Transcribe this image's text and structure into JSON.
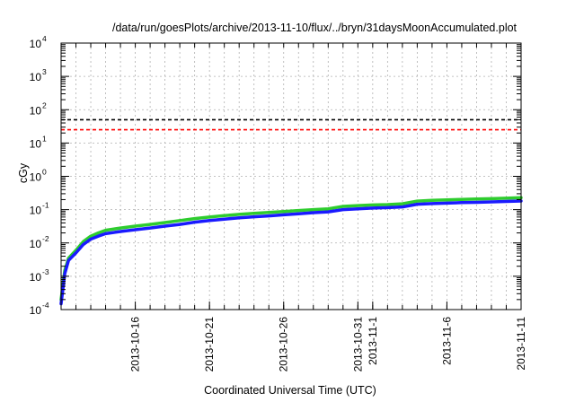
{
  "chart_data": {
    "type": "line",
    "title": "/data/run/goesPlots/archive/2013-11-10/flux/../bryn/31daysMoonAccumulated.plot",
    "xlabel": "Coordinated Universal Time (UTC)",
    "ylabel": "cGy",
    "yscale": "log",
    "ylim": [
      0.0001,
      10000
    ],
    "xlim": [
      "2013-10-11",
      "2013-11-11"
    ],
    "grid": true,
    "x_ticks": [
      "2013-10-16",
      "2013-10-21",
      "2013-10-26",
      "2013-10-31",
      "2013-11-1",
      "2013-11-6",
      "2013-11-11"
    ],
    "y_ticks": [
      {
        "base": "10",
        "exp": "-4",
        "value": 0.0001
      },
      {
        "base": "10",
        "exp": "-3",
        "value": 0.001
      },
      {
        "base": "10",
        "exp": "-2",
        "value": 0.01
      },
      {
        "base": "10",
        "exp": "-1",
        "value": 0.1
      },
      {
        "base": "10",
        "exp": "0",
        "value": 1
      },
      {
        "base": "10",
        "exp": "1",
        "value": 10
      },
      {
        "base": "10",
        "exp": "2",
        "value": 100
      },
      {
        "base": "10",
        "exp": "3",
        "value": 1000
      },
      {
        "base": "10",
        "exp": "4",
        "value": 10000
      }
    ],
    "reference_lines": [
      {
        "value": 50,
        "color": "#000000",
        "style": "dashed"
      },
      {
        "value": 25,
        "color": "#ff0000",
        "style": "dashed"
      }
    ],
    "series": [
      {
        "color": "#2ecc2e",
        "x": [
          "2013-10-11",
          "2013-10-11T06:00",
          "2013-10-11T12:00",
          "2013-10-12",
          "2013-10-12T12:00",
          "2013-10-13",
          "2013-10-13T12:00",
          "2013-10-14",
          "2013-10-15",
          "2013-10-16",
          "2013-10-17",
          "2013-10-18",
          "2013-10-19",
          "2013-10-20",
          "2013-10-21",
          "2013-10-22",
          "2013-10-23",
          "2013-10-24",
          "2013-10-25",
          "2013-10-26",
          "2013-10-27",
          "2013-10-28",
          "2013-10-29",
          "2013-10-30",
          "2013-10-31",
          "2013-11-01",
          "2013-11-02",
          "2013-11-03",
          "2013-11-04",
          "2013-11-05",
          "2013-11-06",
          "2013-11-07",
          "2013-11-08",
          "2013-11-09",
          "2013-11-10",
          "2013-11-11"
        ],
        "y": [
          0.0002,
          0.0015,
          0.0035,
          0.006,
          0.011,
          0.016,
          0.02,
          0.024,
          0.028,
          0.032,
          0.036,
          0.041,
          0.047,
          0.054,
          0.06,
          0.066,
          0.072,
          0.077,
          0.082,
          0.088,
          0.094,
          0.1,
          0.106,
          0.125,
          0.132,
          0.138,
          0.142,
          0.15,
          0.18,
          0.19,
          0.197,
          0.203,
          0.208,
          0.214,
          0.22,
          0.228
        ]
      },
      {
        "color": "#1a1aff",
        "x": [
          "2013-10-11",
          "2013-10-11T06:00",
          "2013-10-11T12:00",
          "2013-10-12",
          "2013-10-12T12:00",
          "2013-10-13",
          "2013-10-13T12:00",
          "2013-10-14",
          "2013-10-15",
          "2013-10-16",
          "2013-10-17",
          "2013-10-18",
          "2013-10-19",
          "2013-10-20",
          "2013-10-21",
          "2013-10-22",
          "2013-10-23",
          "2013-10-24",
          "2013-10-25",
          "2013-10-26",
          "2013-10-27",
          "2013-10-28",
          "2013-10-29",
          "2013-10-30",
          "2013-10-31",
          "2013-11-01",
          "2013-11-02",
          "2013-11-03",
          "2013-11-04",
          "2013-11-05",
          "2013-11-06",
          "2013-11-07",
          "2013-11-08",
          "2013-11-09",
          "2013-11-10",
          "2013-11-11"
        ],
        "y": [
          0.00015,
          0.0012,
          0.003,
          0.005,
          0.009,
          0.013,
          0.016,
          0.019,
          0.022,
          0.025,
          0.028,
          0.032,
          0.036,
          0.042,
          0.047,
          0.052,
          0.057,
          0.061,
          0.065,
          0.07,
          0.075,
          0.081,
          0.086,
          0.1,
          0.106,
          0.111,
          0.115,
          0.121,
          0.145,
          0.152,
          0.157,
          0.162,
          0.166,
          0.171,
          0.176,
          0.182
        ]
      }
    ]
  }
}
